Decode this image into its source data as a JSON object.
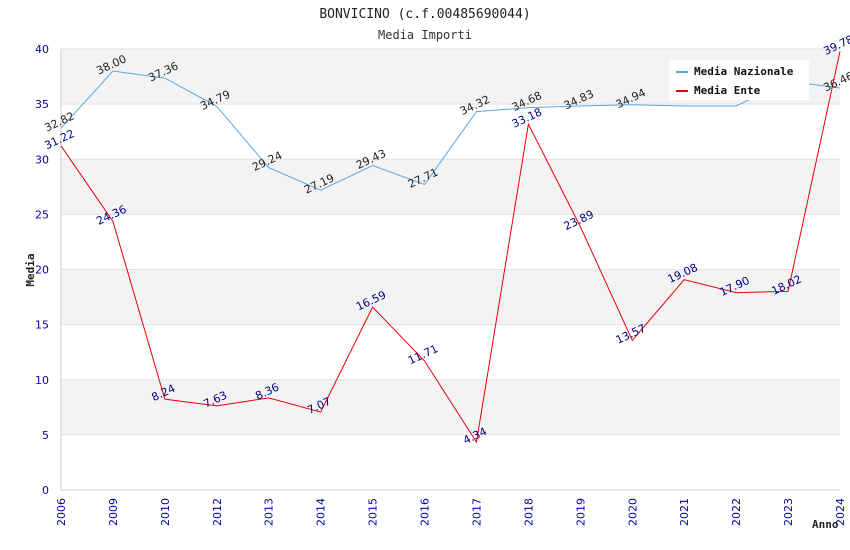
{
  "chart_data": {
    "type": "line",
    "title": "BONVICINO (c.f.00485690044)",
    "subtitle": "Media Importi",
    "xlabel": "Anno",
    "ylabel": "Media",
    "ylim": [
      0,
      40
    ],
    "yticks": [
      "0",
      "5",
      "10",
      "15",
      "20",
      "25",
      "30",
      "35",
      "40"
    ],
    "categories": [
      "2006",
      "2009",
      "2010",
      "2012",
      "2013",
      "2014",
      "2015",
      "2016",
      "2017",
      "2018",
      "2019",
      "2020",
      "2021",
      "2022",
      "2023",
      "2024"
    ],
    "series": [
      {
        "name": "Media Nazionale",
        "color": "#5aa7e8",
        "values": [
          32.82,
          38.0,
          37.36,
          34.79,
          29.24,
          27.19,
          29.43,
          27.71,
          34.32,
          34.68,
          34.83,
          34.94,
          34.83,
          34.83,
          37.06,
          36.46
        ],
        "labels": [
          "32.82",
          "38.00",
          "37.36",
          "34.79",
          "29.24",
          "27.19",
          "29.43",
          "27.71",
          "34.32",
          "34.68",
          "34.83",
          "34.94",
          "",
          "",
          "",
          "36.46"
        ]
      },
      {
        "name": "Media Ente",
        "color": "#e8000b",
        "values": [
          31.22,
          24.36,
          8.24,
          7.63,
          8.36,
          7.07,
          16.59,
          11.71,
          4.34,
          33.18,
          23.89,
          13.57,
          19.08,
          17.9,
          18.02,
          39.78
        ],
        "labels": [
          "31.22",
          "24.36",
          "8.24",
          "7.63",
          "8.36",
          "7.07",
          "16.59",
          "11.71",
          "4.34",
          "33.18",
          "23.89",
          "13.57",
          "19.08",
          "17.90",
          "18.02",
          "39.78"
        ]
      }
    ],
    "legend_position": "top-right"
  }
}
